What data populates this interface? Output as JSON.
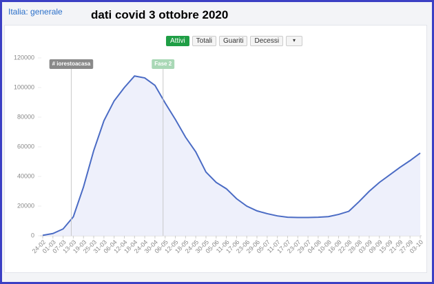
{
  "header": "Italia: generale",
  "chart_data": {
    "type": "area",
    "title": "dati covid 3 ottobre 2020",
    "buttons": [
      {
        "label": "Attivi",
        "active": true
      },
      {
        "label": "Totali",
        "active": false
      },
      {
        "label": "Guariti",
        "active": false
      },
      {
        "label": "Decessi",
        "active": false
      }
    ],
    "categories": [
      "24-02",
      "01-03",
      "07-03",
      "13-03",
      "19-03",
      "25-03",
      "31-03",
      "06-04",
      "12-04",
      "18-04",
      "24-04",
      "30-04",
      "06-05",
      "12-05",
      "18-05",
      "24-05",
      "30-05",
      "05-06",
      "11-06",
      "17-06",
      "23-06",
      "29-06",
      "05-07",
      "11-07",
      "17-07",
      "23-07",
      "29-07",
      "04-08",
      "10-08",
      "16-08",
      "22-08",
      "28-08",
      "03-09",
      "09-09",
      "15-09",
      "21-09",
      "27-09",
      "03-10"
    ],
    "series": [
      {
        "name": "Attivi",
        "color": "#4a6bc4",
        "values": [
          300,
          1500,
          4600,
          12800,
          33000,
          57500,
          77600,
          91000,
          100000,
          107800,
          106500,
          101500,
          89600,
          78500,
          66500,
          56600,
          43000,
          36000,
          31700,
          25000,
          20000,
          16800,
          14900,
          13400,
          12500,
          12300,
          12300,
          12500,
          12900,
          14400,
          16500,
          23000,
          30000,
          36000,
          41000,
          46100,
          50700,
          55800
        ]
      }
    ],
    "ylim": [
      0,
      120000
    ],
    "yticks": [
      0,
      20000,
      40000,
      60000,
      80000,
      100000,
      120000
    ],
    "annotations": [
      {
        "label": "# iorestoacasa",
        "x": "13-03",
        "color": "#8a8a8a"
      },
      {
        "label": "Fase 2",
        "x": "06-05",
        "color": "#a9d8b6"
      }
    ]
  }
}
